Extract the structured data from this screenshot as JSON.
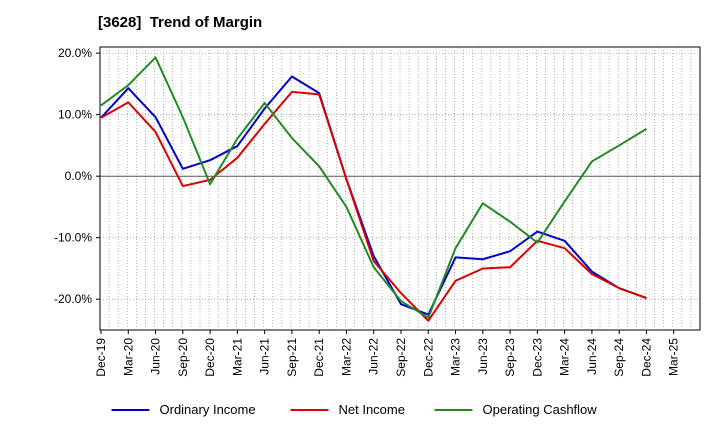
{
  "chart_data": {
    "type": "line",
    "title": "[3628]  Trend of Margin",
    "xlabel": "",
    "ylabel": "",
    "categories": [
      "Dec-19",
      "Mar-20",
      "Jun-20",
      "Sep-20",
      "Dec-20",
      "Mar-21",
      "Jun-21",
      "Sep-21",
      "Dec-21",
      "Mar-22",
      "Jun-22",
      "Sep-22",
      "Dec-22",
      "Mar-23",
      "Jun-23",
      "Sep-23",
      "Dec-23",
      "Mar-24",
      "Jun-24",
      "Sep-24",
      "Dec-24",
      "Mar-25"
    ],
    "yticks": [
      20,
      10,
      0,
      -10,
      -20
    ],
    "ytick_labels": [
      "20.0%",
      "10.0%",
      "0.0%",
      "-10.0%",
      "-20.0%"
    ],
    "ylim": [
      -25,
      21
    ],
    "grid": true,
    "legend_position": "bottom",
    "series": [
      {
        "name": "Ordinary Income",
        "color": "#0000cc",
        "values": [
          9.5,
          14.3,
          9.6,
          1.2,
          2.6,
          4.9,
          11.0,
          16.2,
          13.5,
          -0.5,
          -13.0,
          -20.8,
          -22.5,
          -13.2,
          -13.5,
          -12.2,
          -9.0,
          -10.5,
          -15.5,
          -18.2,
          -19.8,
          null
        ]
      },
      {
        "name": "Net Income",
        "color": "#dd0000",
        "values": [
          9.5,
          12.0,
          7.2,
          -1.6,
          -0.6,
          3.0,
          8.5,
          13.7,
          13.3,
          -0.5,
          -13.8,
          -19.0,
          -23.5,
          -17.0,
          -15.0,
          -14.8,
          -10.5,
          -11.7,
          -15.9,
          -18.2,
          -19.8,
          null
        ]
      },
      {
        "name": "Operating Cashflow",
        "color": "#228b22",
        "values": [
          11.5,
          14.8,
          19.3,
          9.6,
          -1.3,
          6.1,
          11.9,
          6.2,
          1.6,
          -5.0,
          -14.8,
          -20.3,
          -23.0,
          -11.7,
          -4.4,
          -7.4,
          -10.8,
          -4.1,
          2.4,
          5.0,
          7.7,
          null
        ]
      }
    ]
  }
}
